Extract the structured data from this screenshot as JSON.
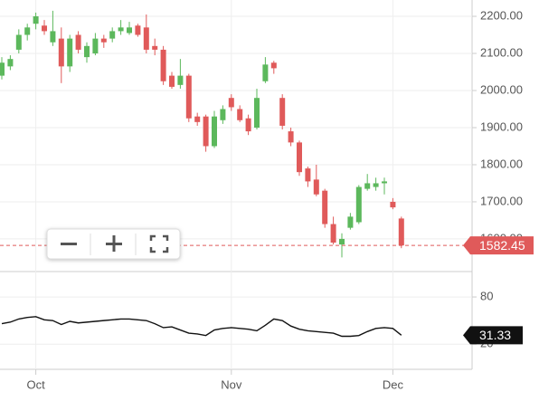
{
  "chart_data": [
    {
      "type": "candlestick",
      "categories": [
        null,
        null,
        null,
        null,
        "Oct",
        null,
        null,
        null,
        null,
        null,
        null,
        null,
        null,
        null,
        null,
        null,
        null,
        null,
        null,
        null,
        null,
        null,
        null,
        null,
        null,
        null,
        null,
        "Nov",
        null,
        null,
        null,
        null,
        null,
        null,
        null,
        null,
        null,
        null,
        null,
        null,
        null,
        null,
        null,
        null,
        null,
        null,
        "Dec",
        null
      ],
      "open": [
        2040,
        2065,
        2110,
        2150,
        2180,
        2175,
        2130,
        2140,
        2065,
        2150,
        2090,
        2100,
        2140,
        2140,
        2160,
        2155,
        2175,
        2170,
        2120,
        2110,
        2040,
        2015,
        2040,
        1930,
        1930,
        1850,
        1920,
        1980,
        1950,
        1925,
        1900,
        2025,
        2075,
        1980,
        1890,
        1860,
        1790,
        1760,
        1730,
        1640,
        1585,
        1630,
        1645,
        1735,
        1740,
        1750,
        1700,
        1655
      ],
      "high": [
        2090,
        2095,
        2165,
        2180,
        2210,
        2190,
        2215,
        2170,
        2150,
        2160,
        2130,
        2155,
        2150,
        2170,
        2190,
        2185,
        2180,
        2205,
        2140,
        2120,
        2050,
        2085,
        2045,
        1940,
        1935,
        1945,
        1960,
        1990,
        1960,
        1935,
        2005,
        2090,
        2080,
        1990,
        1900,
        1865,
        1795,
        1800,
        1735,
        1660,
        1615,
        1670,
        1745,
        1775,
        1765,
        1765,
        1710,
        1660
      ],
      "low": [
        2030,
        2055,
        2100,
        2135,
        2165,
        2150,
        2120,
        2020,
        2050,
        2100,
        2075,
        2095,
        2115,
        2130,
        2150,
        2150,
        2145,
        2100,
        2095,
        2015,
        2005,
        2005,
        1915,
        1905,
        1835,
        1845,
        1910,
        1945,
        1915,
        1880,
        1895,
        2020,
        2045,
        1895,
        1850,
        1770,
        1740,
        1715,
        1630,
        1585,
        1550,
        1625,
        1640,
        1730,
        1730,
        1720,
        1680,
        1575
      ],
      "close": [
        2075,
        2085,
        2150,
        2170,
        2200,
        2160,
        2160,
        2065,
        2140,
        2110,
        2120,
        2140,
        2130,
        2160,
        2170,
        2170,
        2150,
        2110,
        2110,
        2025,
        2010,
        2040,
        1925,
        1915,
        1850,
        1930,
        1950,
        1955,
        1920,
        1890,
        1980,
        2070,
        2060,
        1905,
        1860,
        1780,
        1755,
        1720,
        1640,
        1590,
        1600,
        1660,
        1740,
        1750,
        1750,
        1755,
        1685,
        1582.45
      ],
      "up_color": "#5cb85c",
      "down_color": "#e05a5a",
      "ylim": [
        1512,
        2244
      ],
      "yticks": [
        {
          "value": 1600,
          "label": "1600.00"
        },
        {
          "value": 1700,
          "label": "1700.00"
        },
        {
          "value": 1800,
          "label": "1800.00"
        },
        {
          "value": 1900,
          "label": "1900.00"
        },
        {
          "value": 2000,
          "label": "2000.00"
        },
        {
          "value": 2100,
          "label": "2100.00"
        },
        {
          "value": 2200,
          "label": "2200.00"
        }
      ],
      "grid": true
    },
    {
      "type": "line",
      "values": [
        46,
        48,
        52,
        54,
        55,
        51,
        50,
        45,
        49,
        47,
        48,
        49,
        50,
        51,
        52,
        52,
        51,
        50,
        46,
        41,
        42,
        38,
        34,
        33,
        31,
        38,
        40,
        41,
        40,
        39,
        37,
        44,
        52,
        50,
        43,
        39,
        37,
        36,
        35,
        34,
        30,
        30,
        31,
        36,
        40,
        41,
        40,
        31.33
      ],
      "color": "#111111",
      "ylim": [
        -12,
        110
      ],
      "yticks": [
        20,
        80
      ]
    }
  ]
}
